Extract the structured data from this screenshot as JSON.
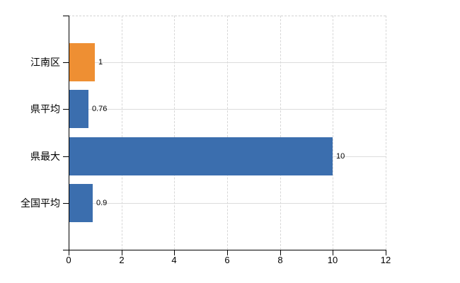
{
  "chart_data": {
    "type": "bar",
    "orientation": "horizontal",
    "categories": [
      "江南区",
      "県平均",
      "県最大",
      "全国平均"
    ],
    "values": [
      1,
      0.76,
      10,
      0.9
    ],
    "value_labels": [
      "1",
      "0.76",
      "10",
      "0.9"
    ],
    "bar_colors": [
      "#EE8F33",
      "#3B6EAE",
      "#3B6EAE",
      "#3B6EAE"
    ],
    "x_ticks": [
      "0",
      "2",
      "4",
      "6",
      "8",
      "10",
      "12"
    ],
    "xlim": [
      0,
      12
    ],
    "title": "",
    "legend_visible": false,
    "grid": {
      "vertical_style": "dashed",
      "horizontal_style": "solid",
      "color": "#D7D7D7"
    },
    "axis_color": "#000000",
    "text_color": "#000000",
    "background": "#FFFFFF"
  }
}
